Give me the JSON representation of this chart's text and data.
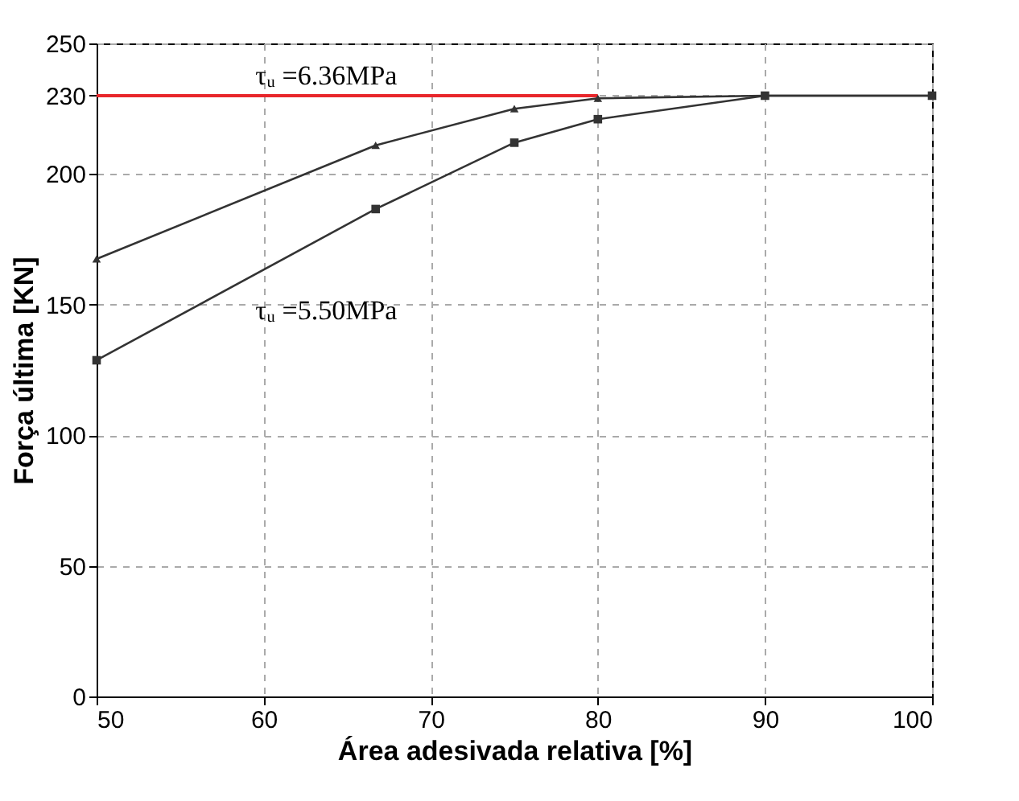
{
  "chart_data": {
    "type": "line",
    "xlabel": "Área adesivada relativa [%]",
    "ylabel": "Força última [KN]",
    "xlim": [
      50,
      100
    ],
    "xticks": [
      50,
      60,
      70,
      80,
      90,
      100
    ],
    "ylim": [
      0,
      250
    ],
    "yticks": [
      0,
      50,
      100,
      150,
      200,
      230,
      250
    ],
    "grid": true,
    "series": [
      {
        "color": "#e8262b",
        "x": [
          50,
          80
        ],
        "values": [
          230,
          230
        ],
        "marker": "none"
      },
      {
        "color": "#333333",
        "x": [
          50,
          66.7,
          75,
          80,
          90,
          100
        ],
        "values": [
          167.5,
          211,
          225,
          229,
          230,
          230
        ],
        "marker": "triangle"
      },
      {
        "color": "#333333",
        "x": [
          50,
          66.7,
          75,
          80,
          90,
          100
        ],
        "values": [
          128.7,
          186.6,
          212,
          221,
          230,
          230
        ],
        "marker": "square"
      }
    ],
    "annotations": [
      "τᵤ =6.36MPa",
      "τᵤ =5.50MPa"
    ]
  }
}
